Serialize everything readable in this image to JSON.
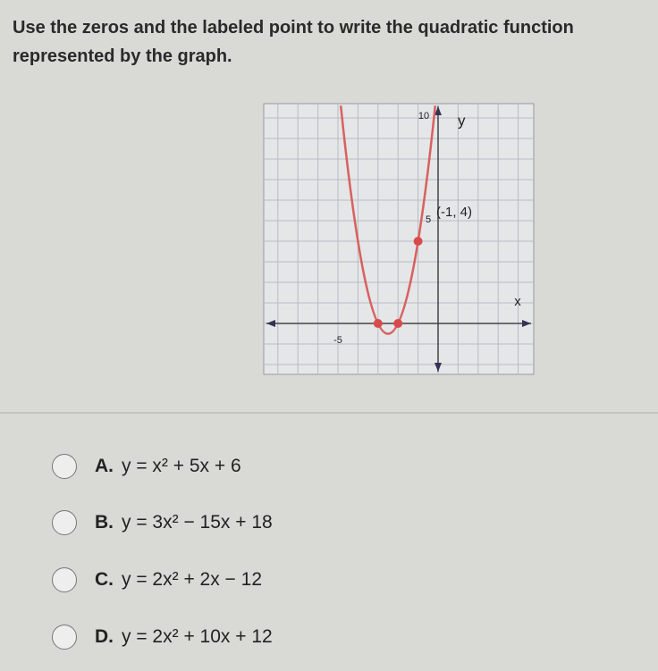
{
  "question": {
    "line1": "Use the zeros and the labeled point to write the quadratic function",
    "line2": "represented by the graph."
  },
  "graph": {
    "y_axis_label": "y",
    "x_axis_label": "x",
    "y_tick_top": "10",
    "y_tick_mid": "5",
    "x_tick_left": "-5",
    "point_label": "(-1, 4)"
  },
  "choices": [
    {
      "letter": "A.",
      "equation": "y = x² + 5x + 6"
    },
    {
      "letter": "B.",
      "equation": "y = 3x² − 15x + 18"
    },
    {
      "letter": "C.",
      "equation": "y = 2x² + 2x − 12"
    },
    {
      "letter": "D.",
      "equation": "y = 2x² + 10x + 12"
    }
  ]
}
